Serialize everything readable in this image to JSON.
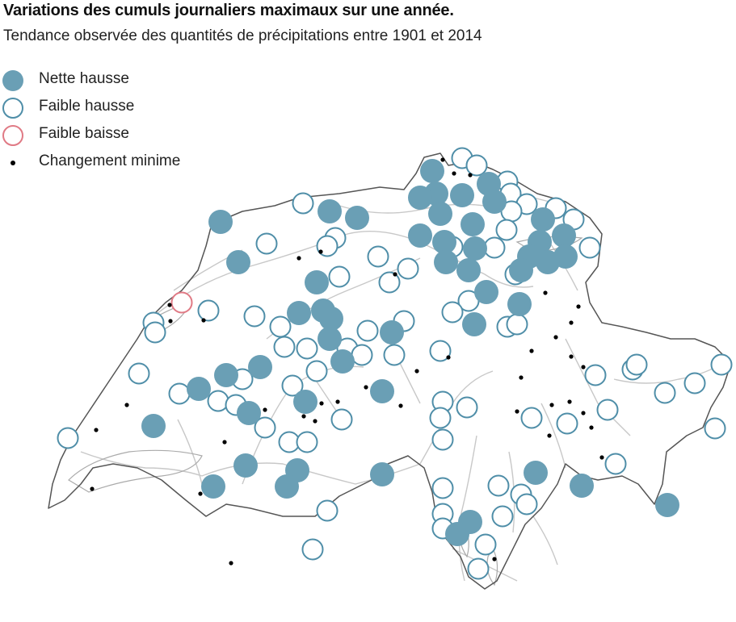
{
  "title": "Variations  des cumuls journaliers maximaux sur une année.",
  "subtitle": "Tendance observée des quantités de précipitations entre 1901 et 2014",
  "colors": {
    "fill": "#6a9fb5",
    "ring": "#4f8ea8",
    "decrease": "#e07a85",
    "dot": "#000000",
    "border": "#555555",
    "rivers": "#c8c8c8"
  },
  "legend": [
    {
      "type": "strong_increase",
      "label": "Nette hausse"
    },
    {
      "type": "weak_increase",
      "label": "Faible hausse"
    },
    {
      "type": "weak_decrease",
      "label": "Faible baisse"
    },
    {
      "type": "minimal_change",
      "label": "Changement minime"
    }
  ]
}
